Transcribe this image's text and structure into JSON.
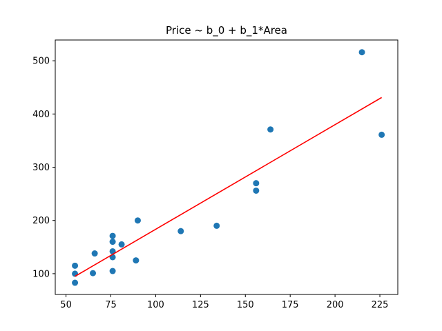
{
  "chart_data": {
    "type": "scatter",
    "title": "Price ~ b_0 + b_1*Area",
    "xlabel": "",
    "ylabel": "",
    "xlim": [
      44,
      235
    ],
    "ylim": [
      61,
      539
    ],
    "xticks": [
      50,
      75,
      100,
      125,
      150,
      175,
      200,
      225
    ],
    "yticks": [
      100,
      200,
      300,
      400,
      500
    ],
    "grid": false,
    "points": [
      {
        "x": 55,
        "y": 115
      },
      {
        "x": 55,
        "y": 100
      },
      {
        "x": 55,
        "y": 83
      },
      {
        "x": 65,
        "y": 101
      },
      {
        "x": 66,
        "y": 138
      },
      {
        "x": 76,
        "y": 171
      },
      {
        "x": 76,
        "y": 160
      },
      {
        "x": 76,
        "y": 142
      },
      {
        "x": 76,
        "y": 131
      },
      {
        "x": 76,
        "y": 105
      },
      {
        "x": 81,
        "y": 155
      },
      {
        "x": 89,
        "y": 125
      },
      {
        "x": 90,
        "y": 200
      },
      {
        "x": 114,
        "y": 180
      },
      {
        "x": 134,
        "y": 190
      },
      {
        "x": 156,
        "y": 270
      },
      {
        "x": 156,
        "y": 256
      },
      {
        "x": 164,
        "y": 371
      },
      {
        "x": 215,
        "y": 516
      },
      {
        "x": 226,
        "y": 361
      }
    ],
    "fit_line": {
      "x1": 55,
      "y1": 95,
      "x2": 226,
      "y2": 431
    },
    "colors": {
      "points": "#1f77b4",
      "fit_line": "#ff0000"
    }
  }
}
